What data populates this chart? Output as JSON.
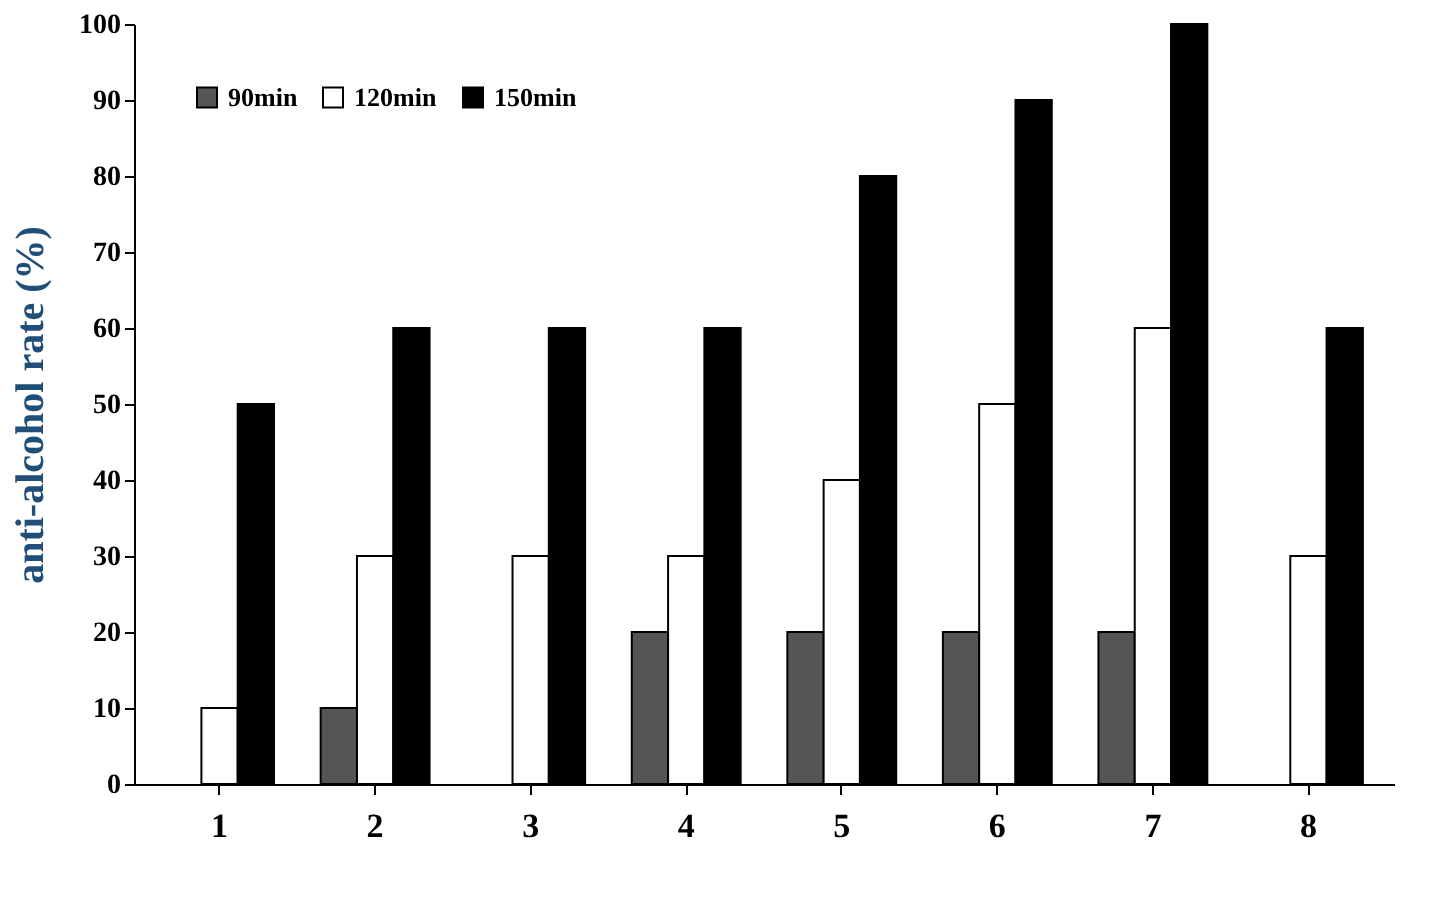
{
  "chart_data": {
    "type": "bar",
    "ylabel": "anti-alcohol rate    (%)",
    "categories": [
      "1",
      "2",
      "3",
      "4",
      "5",
      "6",
      "7",
      "8"
    ],
    "series": [
      {
        "name": "90min",
        "color": "#555555",
        "values": [
          null,
          10,
          null,
          20,
          20,
          20,
          20,
          null
        ]
      },
      {
        "name": "120min",
        "color": "#ffffff",
        "values": [
          10,
          30,
          30,
          30,
          40,
          50,
          60,
          30
        ]
      },
      {
        "name": "150min",
        "color": "#000000",
        "values": [
          50,
          60,
          60,
          60,
          80,
          90,
          100,
          60
        ]
      }
    ],
    "ylim": [
      0,
      100
    ],
    "yticks": [
      0,
      10,
      20,
      30,
      40,
      50,
      60,
      70,
      80,
      90,
      100
    ],
    "grid": false,
    "legend": "top left"
  }
}
